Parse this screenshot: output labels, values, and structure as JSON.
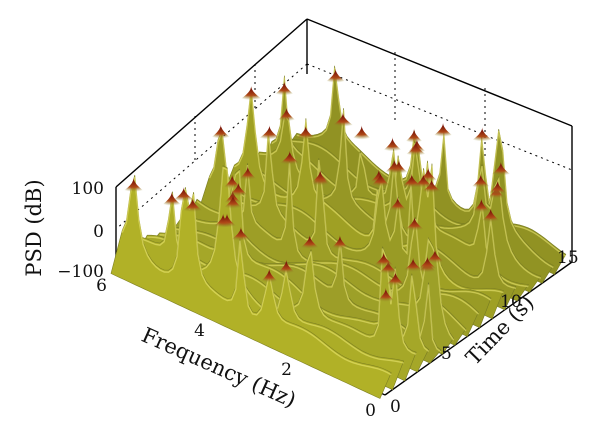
{
  "chart_data": {
    "type": "surface",
    "xlabel": "Frequency (Hz)",
    "ylabel": "Time (s)",
    "zlabel": "PSD (dB)",
    "x_ticks": [
      "0",
      "2",
      "4",
      "6"
    ],
    "y_ticks": [
      "0",
      "5",
      "10",
      "15"
    ],
    "z_ticks": [
      "100",
      "0",
      "−100"
    ],
    "xlim": [
      0,
      6
    ],
    "ylim": [
      0,
      17
    ],
    "zlim": [
      -100,
      100
    ],
    "grid": true,
    "colors": {
      "low": "#3a8a8a",
      "mid": "#9aa030",
      "high": "#e8e020",
      "peak": "#8a1a10"
    }
  }
}
